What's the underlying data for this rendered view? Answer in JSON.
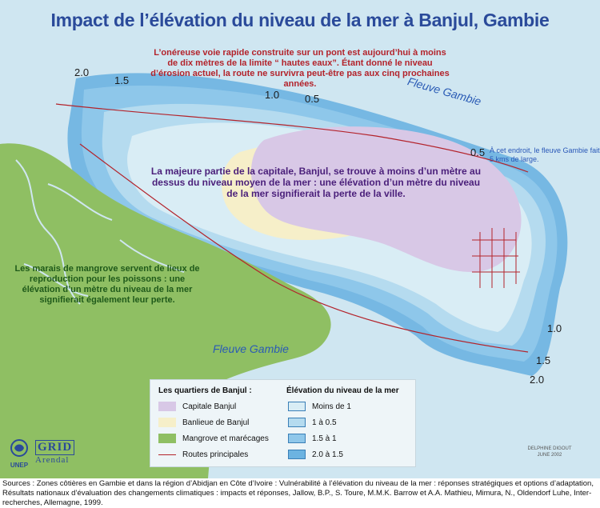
{
  "title": "Impact de l’élévation du niveau de la mer à Banjul, Gambie",
  "annotations": {
    "road": "L’onéreuse voie rapide construite sur un pont est aujourd’hui à moins de dix mètres de la limite “ hautes eaux”. Étant donné le niveau d’érosion actuel, la route ne survivra peut-être pas aux cinq prochaines années.",
    "capital": "La majeure partie de la capitale, Banjul, se trouve à moins d’un mètre au dessus du niveau moyen de la mer : une élévation d’un mètre du niveau de la mer signifierait la perte de la ville.",
    "mangrove": "Les marais de mangrove servent de lieux de reproduction pour les poissons : une élévation d’un mètre du niveau de la mer signifierait également leur perte.",
    "river_width": "À cet endroit, le fleuve Gambie fait 5 kms de large."
  },
  "river_labels": [
    "Fleuve Gambie",
    "Fleuve Gambie"
  ],
  "contour_labels": [
    "2.0",
    "1.5",
    "1.0",
    "0.5",
    "0.5",
    "1.0",
    "1.5",
    "2.0"
  ],
  "legend": {
    "districts_title": "Les quartiers de Banjul :",
    "districts": [
      {
        "label": "Capitale Banjul",
        "color": "#d8c8e6"
      },
      {
        "label": "Banlieue de Banjul",
        "color": "#f6efc9"
      },
      {
        "label": "Mangrove et marécages",
        "color": "#8fbf63"
      },
      {
        "label": "Routes principales",
        "color": "#b3232b"
      }
    ],
    "elevation_title": "Élévation du niveau de la mer",
    "elevation": [
      {
        "label": "Moins de 1",
        "color": "#d9edf5"
      },
      {
        "label": "1 à 0.5",
        "color": "#b5dbef"
      },
      {
        "label": "1.5 à 1",
        "color": "#8fc7ea"
      },
      {
        "label": "2.0 à 1.5",
        "color": "#6cb3e1"
      }
    ]
  },
  "logos": {
    "unep": "UNEP",
    "grid_top": "GRID",
    "grid_bottom": "Arendal"
  },
  "credit": {
    "author": "DELPHINE DIGOUT",
    "date": "JUNE 2002"
  },
  "sources": "Sources : Zones côtières en Gambie et dans la région d’Abidjan en Côte d’Ivoire : Vulnérabilité à l’élévation du niveau de la mer : réponses stratégiques et options d’adaptation, Résultats nationaux d’évaluation des changements climatiques : impacts et réponses, Jallow, B.P., S. Toure, M.M.K. Barrow et A.A. Mathieu, Mimura, N., Oldendorf Luhe, Inter-recherches, Allemagne, 1999."
}
